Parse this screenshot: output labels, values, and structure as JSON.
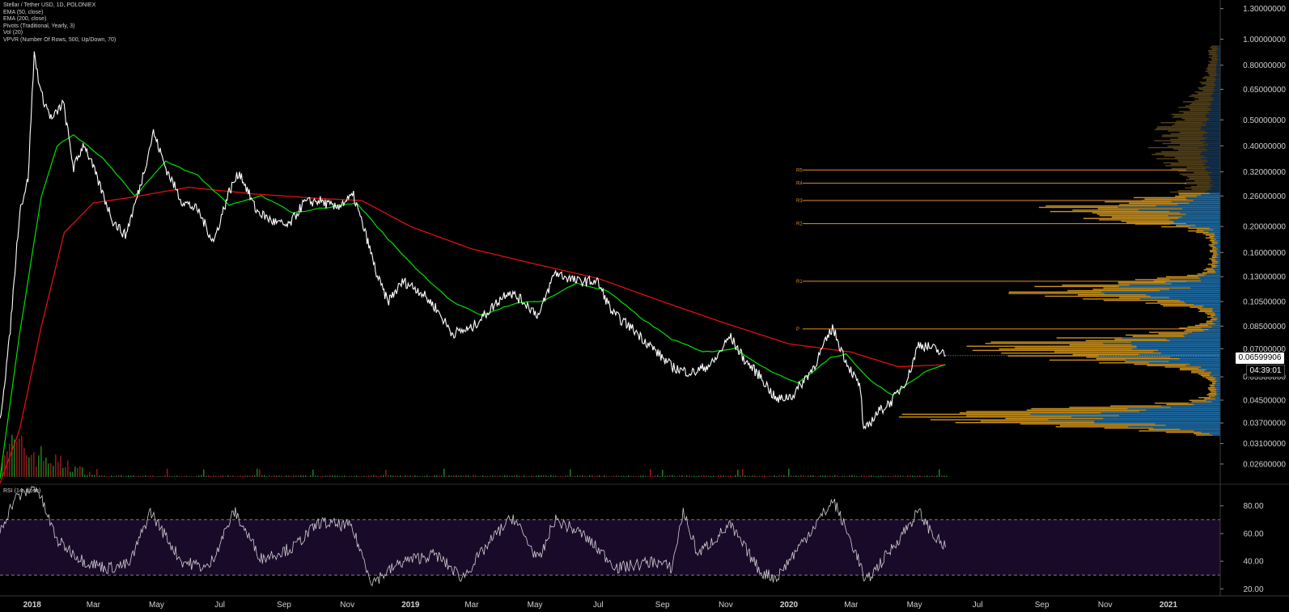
{
  "header": {
    "title": "Stellar / Tether USD, 1D, POLONIEX",
    "indicators": [
      "EMA (50, close)",
      "EMA (200, close)",
      "Pivots (Traditional, Yearly, 3)",
      "Vol (20)",
      "VPVR (Number Of Rows, 500, Up/Down, 70)"
    ]
  },
  "rsi_panel": {
    "title": "RSI (14, close)"
  },
  "last_price": {
    "value": "0.06599906",
    "countdown": "04:39:01"
  },
  "colors": {
    "background": "#000000",
    "price_line": "#ffffff",
    "ema50": "#00e000",
    "ema200": "#e01010",
    "pivot_lines": "#e0902a",
    "vp_up": "#1f6ea8",
    "vp_down": "#c9901c",
    "rsi_band": "#1a0a2a",
    "rsi_line": "#d0d0d0"
  },
  "chart_data": [
    {
      "type": "line",
      "log_scale": true,
      "x_tick_labels": [
        "2018",
        "Mar",
        "May",
        "Jul",
        "Sep",
        "Nov",
        "2019",
        "Mar",
        "May",
        "Jul",
        "Sep",
        "Nov",
        "2020",
        "Mar",
        "May",
        "Jul",
        "Sep",
        "Nov",
        "2021"
      ],
      "y_tick_labels": [
        "1.30000000",
        "1.00000000",
        "0.80000000",
        "0.65000000",
        "0.50000000",
        "0.40000000",
        "0.32000000",
        "0.26000000",
        "0.20000000",
        "0.16000000",
        "0.13000000",
        "0.10500000",
        "0.08500000",
        "0.07000000",
        "0.05500000",
        "0.04500000",
        "0.03700000",
        "0.03100000",
        "0.02600000"
      ],
      "ylim": [
        0.022,
        1.4
      ],
      "pivots": [
        {
          "label": "R5",
          "value": 0.325
        },
        {
          "label": "R4",
          "value": 0.29
        },
        {
          "label": "R3",
          "value": 0.25
        },
        {
          "label": "R2",
          "value": 0.205
        },
        {
          "label": "R1",
          "value": 0.125
        },
        {
          "label": "P",
          "value": 0.083
        }
      ],
      "series": [
        {
          "points": [
            [
              "2017-12-01",
              0.038
            ],
            [
              "2017-12-10",
              0.075
            ],
            [
              "2017-12-20",
              0.23
            ],
            [
              "2017-12-28",
              0.3
            ],
            [
              "2018-01-03",
              0.88
            ],
            [
              "2018-01-10",
              0.62
            ],
            [
              "2018-01-20",
              0.5
            ],
            [
              "2018-01-31",
              0.58
            ],
            [
              "2018-02-10",
              0.33
            ],
            [
              "2018-02-20",
              0.41
            ],
            [
              "2018-03-05",
              0.3
            ],
            [
              "2018-03-20",
              0.21
            ],
            [
              "2018-04-01",
              0.185
            ],
            [
              "2018-04-15",
              0.28
            ],
            [
              "2018-04-28",
              0.45
            ],
            [
              "2018-05-10",
              0.33
            ],
            [
              "2018-05-25",
              0.25
            ],
            [
              "2018-06-10",
              0.23
            ],
            [
              "2018-06-25",
              0.175
            ],
            [
              "2018-07-10",
              0.27
            ],
            [
              "2018-07-20",
              0.32
            ],
            [
              "2018-08-05",
              0.23
            ],
            [
              "2018-08-20",
              0.21
            ],
            [
              "2018-09-05",
              0.2
            ],
            [
              "2018-09-20",
              0.245
            ],
            [
              "2018-10-05",
              0.25
            ],
            [
              "2018-10-20",
              0.235
            ],
            [
              "2018-11-07",
              0.26
            ],
            [
              "2018-11-20",
              0.18
            ],
            [
              "2018-11-30",
              0.13
            ],
            [
              "2018-12-10",
              0.105
            ],
            [
              "2018-12-25",
              0.125
            ],
            [
              "2019-01-10",
              0.115
            ],
            [
              "2019-01-25",
              0.1
            ],
            [
              "2019-02-10",
              0.08
            ],
            [
              "2019-02-28",
              0.083
            ],
            [
              "2019-03-15",
              0.095
            ],
            [
              "2019-04-05",
              0.115
            ],
            [
              "2019-04-20",
              0.105
            ],
            [
              "2019-05-05",
              0.093
            ],
            [
              "2019-05-20",
              0.135
            ],
            [
              "2019-06-10",
              0.125
            ],
            [
              "2019-06-30",
              0.125
            ],
            [
              "2019-07-15",
              0.095
            ],
            [
              "2019-08-05",
              0.082
            ],
            [
              "2019-08-20",
              0.072
            ],
            [
              "2019-09-10",
              0.06
            ],
            [
              "2019-09-20",
              0.058
            ],
            [
              "2019-10-01",
              0.057
            ],
            [
              "2019-10-20",
              0.062
            ],
            [
              "2019-11-05",
              0.078
            ],
            [
              "2019-11-20",
              0.063
            ],
            [
              "2019-12-05",
              0.055
            ],
            [
              "2019-12-20",
              0.045
            ],
            [
              "2020-01-05",
              0.047
            ],
            [
              "2020-01-25",
              0.06
            ],
            [
              "2020-02-12",
              0.084
            ],
            [
              "2020-02-25",
              0.063
            ],
            [
              "2020-03-10",
              0.05
            ],
            [
              "2020-03-13",
              0.034
            ],
            [
              "2020-03-25",
              0.04
            ],
            [
              "2020-04-10",
              0.045
            ],
            [
              "2020-04-25",
              0.055
            ],
            [
              "2020-05-05",
              0.073
            ],
            [
              "2020-05-20",
              0.07
            ],
            [
              "2020-05-31",
              0.066
            ]
          ]
        },
        {
          "name": "EMA (50, close)",
          "points": [
            [
              "2017-12-01",
              0.023
            ],
            [
              "2017-12-20",
              0.08
            ],
            [
              "2018-01-10",
              0.26
            ],
            [
              "2018-01-25",
              0.4
            ],
            [
              "2018-02-10",
              0.44
            ],
            [
              "2018-03-10",
              0.36
            ],
            [
              "2018-04-10",
              0.26
            ],
            [
              "2018-05-10",
              0.35
            ],
            [
              "2018-06-10",
              0.31
            ],
            [
              "2018-07-10",
              0.24
            ],
            [
              "2018-08-10",
              0.26
            ],
            [
              "2018-09-10",
              0.225
            ],
            [
              "2018-10-10",
              0.235
            ],
            [
              "2018-11-10",
              0.245
            ],
            [
              "2018-12-10",
              0.18
            ],
            [
              "2019-01-10",
              0.135
            ],
            [
              "2019-02-10",
              0.105
            ],
            [
              "2019-03-10",
              0.093
            ],
            [
              "2019-04-10",
              0.103
            ],
            [
              "2019-05-10",
              0.106
            ],
            [
              "2019-06-10",
              0.123
            ],
            [
              "2019-07-10",
              0.115
            ],
            [
              "2019-08-10",
              0.092
            ],
            [
              "2019-09-10",
              0.076
            ],
            [
              "2019-10-10",
              0.068
            ],
            [
              "2019-11-10",
              0.07
            ],
            [
              "2019-12-10",
              0.059
            ],
            [
              "2020-01-10",
              0.052
            ],
            [
              "2020-02-10",
              0.065
            ],
            [
              "2020-02-25",
              0.067
            ],
            [
              "2020-03-20",
              0.053
            ],
            [
              "2020-04-10",
              0.047
            ],
            [
              "2020-05-10",
              0.057
            ],
            [
              "2020-05-31",
              0.061
            ]
          ]
        },
        {
          "name": "EMA (200, close)",
          "points": [
            [
              "2017-12-01",
              0.022
            ],
            [
              "2017-12-20",
              0.035
            ],
            [
              "2018-01-10",
              0.085
            ],
            [
              "2018-02-01",
              0.19
            ],
            [
              "2018-03-01",
              0.245
            ],
            [
              "2018-04-01",
              0.255
            ],
            [
              "2018-06-01",
              0.28
            ],
            [
              "2018-08-01",
              0.265
            ],
            [
              "2018-10-01",
              0.255
            ],
            [
              "2018-11-15",
              0.25
            ],
            [
              "2019-01-01",
              0.2
            ],
            [
              "2019-03-01",
              0.165
            ],
            [
              "2019-05-01",
              0.145
            ],
            [
              "2019-07-01",
              0.128
            ],
            [
              "2019-09-01",
              0.105
            ],
            [
              "2019-11-01",
              0.087
            ],
            [
              "2020-01-01",
              0.073
            ],
            [
              "2020-03-01",
              0.068
            ],
            [
              "2020-04-15",
              0.06
            ],
            [
              "2020-05-31",
              0.061
            ]
          ]
        }
      ]
    },
    {
      "type": "line",
      "title": "RSI (14, close)",
      "ylim": [
        15,
        95
      ],
      "y_tick_labels": [
        "80.00",
        "60.00",
        "40.00",
        "20.00"
      ],
      "bands": [
        70,
        30
      ],
      "series": [
        {
          "points": [
            [
              "2017-12-01",
              62
            ],
            [
              "2017-12-15",
              85
            ],
            [
              "2018-01-05",
              94
            ],
            [
              "2018-01-25",
              55
            ],
            [
              "2018-02-20",
              40
            ],
            [
              "2018-03-15",
              35
            ],
            [
              "2018-04-05",
              38
            ],
            [
              "2018-04-25",
              76
            ],
            [
              "2018-05-25",
              40
            ],
            [
              "2018-06-20",
              35
            ],
            [
              "2018-07-15",
              76
            ],
            [
              "2018-08-10",
              42
            ],
            [
              "2018-09-10",
              50
            ],
            [
              "2018-10-05",
              68
            ],
            [
              "2018-11-05",
              65
            ],
            [
              "2018-11-25",
              25
            ],
            [
              "2018-12-25",
              40
            ],
            [
              "2019-01-25",
              45
            ],
            [
              "2019-02-20",
              28
            ],
            [
              "2019-03-25",
              60
            ],
            [
              "2019-04-10",
              72
            ],
            [
              "2019-05-05",
              40
            ],
            [
              "2019-05-20",
              70
            ],
            [
              "2019-06-15",
              60
            ],
            [
              "2019-07-20",
              35
            ],
            [
              "2019-08-25",
              40
            ],
            [
              "2019-09-10",
              35
            ],
            [
              "2019-09-21",
              76
            ],
            [
              "2019-10-05",
              45
            ],
            [
              "2019-11-05",
              66
            ],
            [
              "2019-12-05",
              32
            ],
            [
              "2019-12-20",
              28
            ],
            [
              "2020-01-20",
              60
            ],
            [
              "2020-02-13",
              84
            ],
            [
              "2020-03-10",
              38
            ],
            [
              "2020-03-14",
              24
            ],
            [
              "2020-04-10",
              50
            ],
            [
              "2020-05-05",
              76
            ],
            [
              "2020-05-20",
              58
            ],
            [
              "2020-05-31",
              50
            ]
          ]
        }
      ]
    }
  ]
}
